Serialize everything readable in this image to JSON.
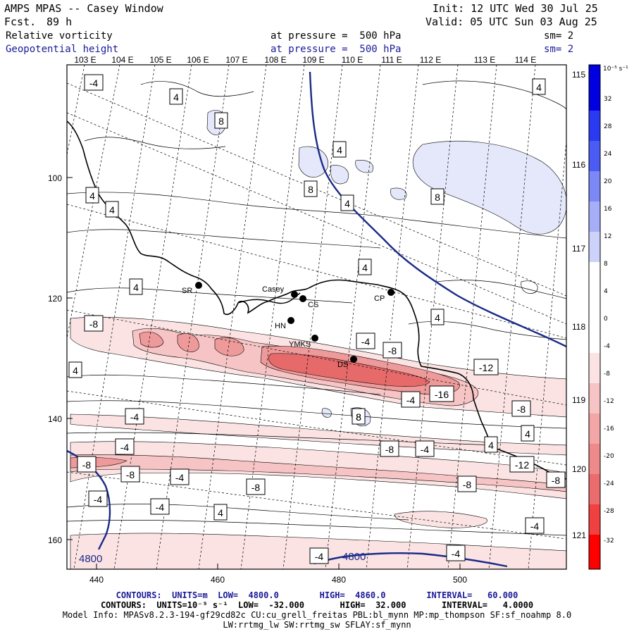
{
  "header": {
    "model": "AMPS MPAS -- Casey Window",
    "fcst_label": "Fcst.",
    "fcst_value": "89 h",
    "init": "Init: 12 UTC Wed 30 Jul 25",
    "valid": "Valid: 05 UTC Sun 03 Aug 25",
    "field1": "Relative vorticity",
    "field1_level": "at pressure =  500 hPa",
    "field1_sm": "sm= 2",
    "field2": "Geopotential height",
    "field2_level": "at pressure =  500 hPa",
    "field2_sm": "sm= 2"
  },
  "colors": {
    "frame": "#000000",
    "navy_line": "#1a2a88",
    "pos_light": "#e4e8fa",
    "neg_1": "#fbe3e3",
    "neg_2": "#f6c4c4",
    "neg_3": "#ee9a9a",
    "neg_4": "#e66a6a"
  },
  "map": {
    "lon_top_labels": [
      "103 E",
      "104 E",
      "105 E",
      "106 E",
      "107 E",
      "108 E",
      "109 E",
      "110 E",
      "111 E",
      "112 E",
      "113 E",
      "114 E"
    ],
    "lon_right_labels": [
      "115 E",
      "116 E",
      "117 E",
      "118 E",
      "119 E",
      "120 E",
      "121 E"
    ],
    "x_ticks": [
      "440",
      "460",
      "480",
      "500"
    ],
    "y_ticks": [
      "100",
      "120",
      "140",
      "160"
    ],
    "stations": [
      {
        "name": "SR"
      },
      {
        "name": "Casey"
      },
      {
        "name": "CS"
      },
      {
        "name": "CP"
      },
      {
        "name": "HN"
      },
      {
        "name": "YMKS"
      },
      {
        "name": "DS"
      }
    ],
    "contour_labels": [
      "-4",
      "4",
      "4",
      "8",
      "8",
      "4",
      "4",
      "8",
      "8",
      "4",
      "4",
      "4",
      "4",
      "4",
      "4",
      "-8",
      "-4",
      "-8",
      "-12",
      "-16",
      "-4",
      "-8",
      "8",
      "-4",
      "-4",
      "-8",
      "-4",
      "-8",
      "-8",
      "-4",
      "-4",
      "-8",
      "4",
      "-12",
      "-8",
      "-8",
      "-4",
      "4",
      "-4",
      "-4",
      "-4",
      "4"
    ],
    "height_labels": [
      "4800",
      "4800"
    ]
  },
  "colorbar": {
    "unit": "10⁻⁵ s⁻¹",
    "labels": [
      "32",
      "28",
      "24",
      "20",
      "16",
      "12",
      "8",
      "4",
      "0",
      "-4",
      "-8",
      "-12",
      "-16",
      "-20",
      "-24",
      "-28",
      "-32"
    ]
  },
  "footer": {
    "line1": "CONTOURS:  UNITS=m  LOW=  4800.0        HIGH=  4860.0        INTERVAL=   60.000",
    "line2": "CONTOURS:  UNITS=10⁻⁵ s⁻¹  LOW=  -32.000       HIGH=  32.000       INTERVAL=   4.0000",
    "line3": "Model Info: MPASv8.2.3-194-gf29cd82c CU:cu_grell_freitas PBL:bl_mynn MP:mp_thompson SF:sf_noahmp 8.0",
    "line4": "LW:rrtmg_lw SW:rrtmg_sw SFLAY:sf_mynn"
  }
}
